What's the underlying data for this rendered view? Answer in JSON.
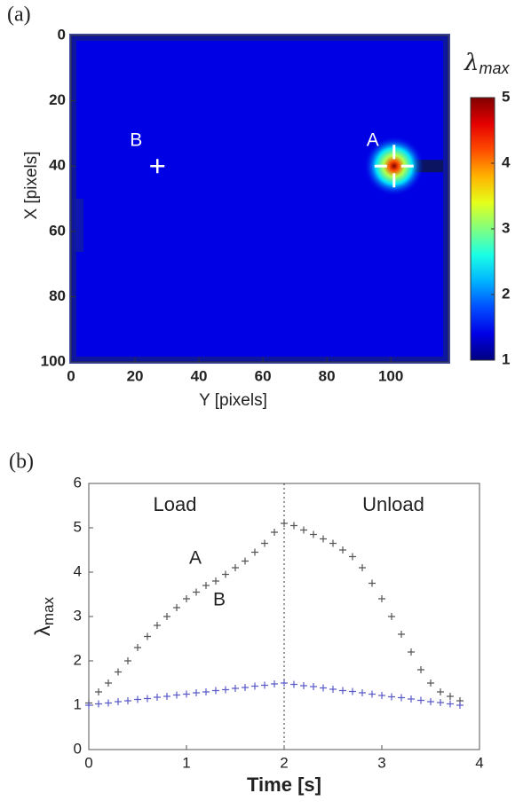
{
  "chart_data": [
    {
      "type": "heatmap",
      "panel_label": "(a)",
      "xlabel": "Y [pixels]",
      "ylabel": "X [pixels]",
      "xlim": [
        0,
        118
      ],
      "ylim": [
        100,
        0
      ],
      "xticks": [
        0,
        20,
        40,
        60,
        80,
        100
      ],
      "yticks": [
        0,
        20,
        40,
        60,
        80,
        100
      ],
      "colorbar": {
        "symbol": "λ",
        "subscript": "max",
        "lim": [
          1,
          5
        ],
        "ticks": [
          1,
          2,
          3,
          4,
          5
        ],
        "colormap": "jet"
      },
      "background_value": 1.4,
      "points": [
        {
          "label": "A",
          "x": 101,
          "y": 40,
          "value": 5
        },
        {
          "label": "B",
          "x": 27,
          "y": 40,
          "value": 1.5
        }
      ]
    },
    {
      "type": "scatter",
      "panel_label": "(b)",
      "xlabel": "Time [s]",
      "ylabel_symbol": "λ",
      "ylabel_subscript": "max",
      "xlim": [
        0,
        4
      ],
      "ylim": [
        0,
        6
      ],
      "xticks": [
        0,
        1,
        2,
        3,
        4
      ],
      "yticks": [
        0,
        1,
        2,
        3,
        4,
        5,
        6
      ],
      "divider_x": 2,
      "annotations": [
        "Load",
        "Unload"
      ],
      "x": [
        0,
        0.1,
        0.2,
        0.3,
        0.4,
        0.5,
        0.6,
        0.7,
        0.8,
        0.9,
        1.0,
        1.1,
        1.2,
        1.3,
        1.4,
        1.5,
        1.6,
        1.7,
        1.8,
        1.9,
        2.0,
        2.1,
        2.2,
        2.3,
        2.4,
        2.5,
        2.6,
        2.7,
        2.8,
        2.9,
        3.0,
        3.1,
        3.2,
        3.3,
        3.4,
        3.5,
        3.6,
        3.7,
        3.8
      ],
      "series": [
        {
          "name": "A",
          "color": "#555555",
          "values": [
            1.05,
            1.3,
            1.5,
            1.75,
            2.0,
            2.3,
            2.55,
            2.8,
            3.0,
            3.2,
            3.4,
            3.55,
            3.7,
            3.8,
            3.95,
            4.1,
            4.25,
            4.45,
            4.65,
            4.9,
            5.1,
            5.05,
            4.95,
            4.85,
            4.75,
            4.65,
            4.5,
            4.35,
            4.1,
            3.75,
            3.4,
            3.0,
            2.6,
            2.2,
            1.8,
            1.5,
            1.3,
            1.2,
            1.1
          ]
        },
        {
          "name": "B",
          "color": "#5a5ac8",
          "values": [
            1.0,
            1.03,
            1.05,
            1.08,
            1.1,
            1.13,
            1.15,
            1.18,
            1.2,
            1.23,
            1.25,
            1.28,
            1.3,
            1.33,
            1.35,
            1.38,
            1.4,
            1.43,
            1.45,
            1.48,
            1.5,
            1.47,
            1.44,
            1.42,
            1.39,
            1.36,
            1.33,
            1.31,
            1.28,
            1.25,
            1.22,
            1.19,
            1.17,
            1.14,
            1.11,
            1.08,
            1.06,
            1.03,
            1.0
          ]
        }
      ]
    }
  ]
}
